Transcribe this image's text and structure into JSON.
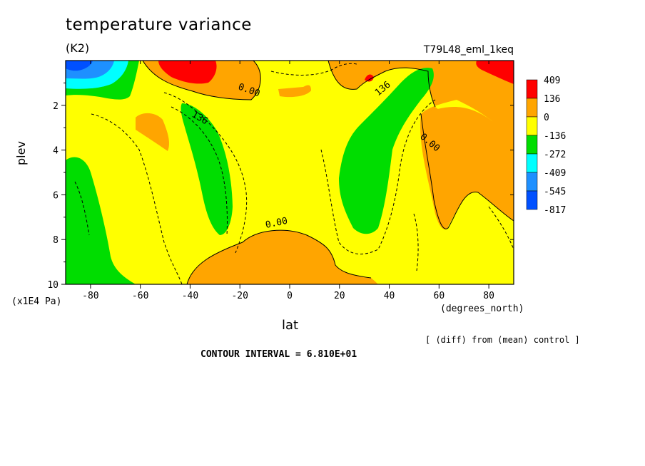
{
  "chart_data": {
    "type": "heatmap",
    "title": "temperature variance",
    "units": "(K2)",
    "experiment": "T79L48_eml_1keq",
    "xlabel": "lat",
    "xunits": "(degrees_north)",
    "ylabel": "plev",
    "yunits": "(x1E4 Pa)",
    "xlim": [
      -90,
      90
    ],
    "ylim": [
      10,
      0
    ],
    "xticks": [
      "-80",
      "-60",
      "-40",
      "-20",
      "0",
      "20",
      "40",
      "60",
      "80"
    ],
    "yticks": [
      "2",
      "4",
      "6",
      "8",
      "10"
    ],
    "legend": [
      {
        "label": "409",
        "color": "#ff0000"
      },
      {
        "label": "136",
        "color": "#ffa500"
      },
      {
        "label": "0",
        "color": "#ffff00"
      },
      {
        "label": "-136",
        "color": "#00dd00"
      },
      {
        "label": "-272",
        "color": "#00ffff"
      },
      {
        "label": "-409",
        "color": "#1e90ff"
      },
      {
        "label": "-545",
        "color": "#0050ff"
      },
      {
        "label": "-817",
        "color": ""
      }
    ],
    "contour_labels": [
      "0.00",
      "0.00",
      "0.00",
      "136",
      "136"
    ],
    "note": "[ (diff) from (mean) control ]",
    "contour_interval": "CONTOUR INTERVAL = 6.810E+01"
  }
}
